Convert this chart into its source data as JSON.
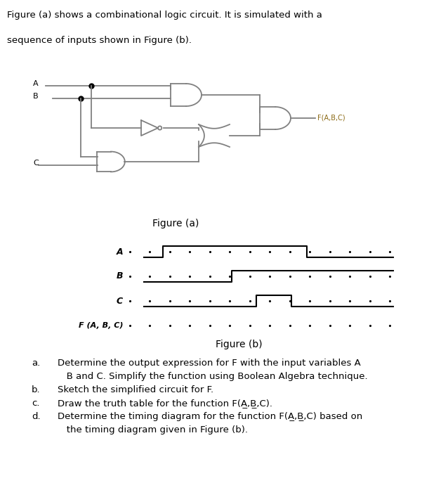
{
  "title_text": "Figure (a) shows a combinational logic circuit. It is simulated with a\n\nsequence of inputs shown in Figure (b).",
  "fig_a_label": "Figure (a)",
  "fig_b_label": "Figure (b)",
  "output_label": "F(A,B,C)",
  "bg_color": "#ffffff",
  "line_color": "#808080",
  "text_color": "#000000",
  "questions": [
    "a. Determine the output expression for F with the input variables A",
    "   B and C. Simplify the function using Boolean Algebra technique.",
    "b. Sketch the simplified circuit for F.",
    "c. Draw the truth table for the function F(A̲,B̲,C).",
    "d. Determine the timing diagram for the function F(A̲,B̲,C) based on",
    "   the timing diagram given in Figure (b)."
  ]
}
